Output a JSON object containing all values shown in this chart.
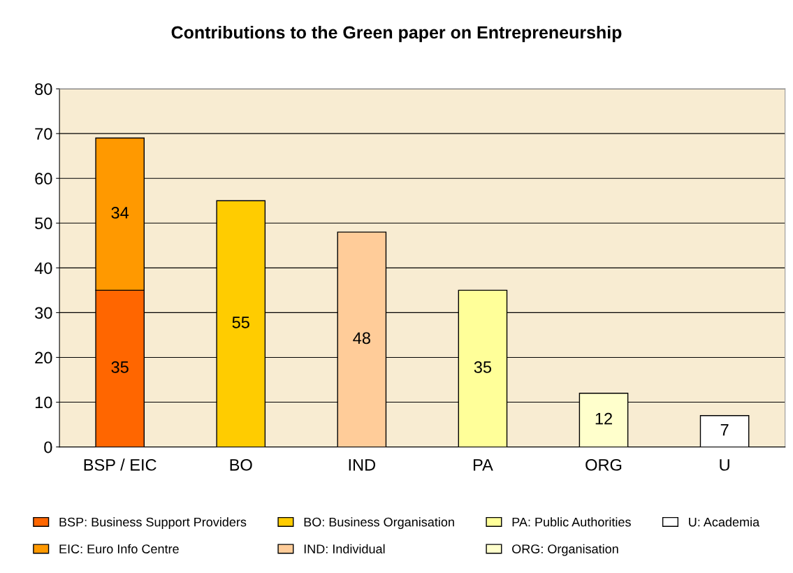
{
  "chart_data": {
    "type": "bar",
    "title": "Contributions to the Green paper on Entrepreneurship",
    "categories": [
      "BSP / EIC",
      "BO",
      "IND",
      "PA",
      "ORG",
      "U"
    ],
    "stacked": true,
    "data_labels": true,
    "grid": "y",
    "legend": "bottom",
    "ylim": [
      0,
      80
    ],
    "yticks": [
      0,
      10,
      20,
      30,
      40,
      50,
      60,
      70,
      80
    ],
    "series": [
      {
        "name": "BSP: Business Support Providers",
        "color": "#ff6600",
        "values": [
          35,
          null,
          null,
          null,
          null,
          null
        ]
      },
      {
        "name": "EIC: Euro Info Centre",
        "color": "#ff9900",
        "values": [
          34,
          null,
          null,
          null,
          null,
          null
        ]
      },
      {
        "name": "BO: Business Organisation",
        "color": "#ffcc00",
        "values": [
          null,
          55,
          null,
          null,
          null,
          null
        ]
      },
      {
        "name": "IND: Individual",
        "color": "#ffcc99",
        "values": [
          null,
          null,
          48,
          null,
          null,
          null
        ]
      },
      {
        "name": "PA: Public Authorities",
        "color": "#ffff99",
        "values": [
          null,
          null,
          null,
          35,
          null,
          null
        ]
      },
      {
        "name": "ORG: Organisation",
        "color": "#ffffcc",
        "values": [
          null,
          null,
          null,
          null,
          12,
          null
        ]
      },
      {
        "name": "U: Academia",
        "color": "#ffffff",
        "values": [
          null,
          null,
          null,
          null,
          null,
          7
        ]
      }
    ]
  }
}
